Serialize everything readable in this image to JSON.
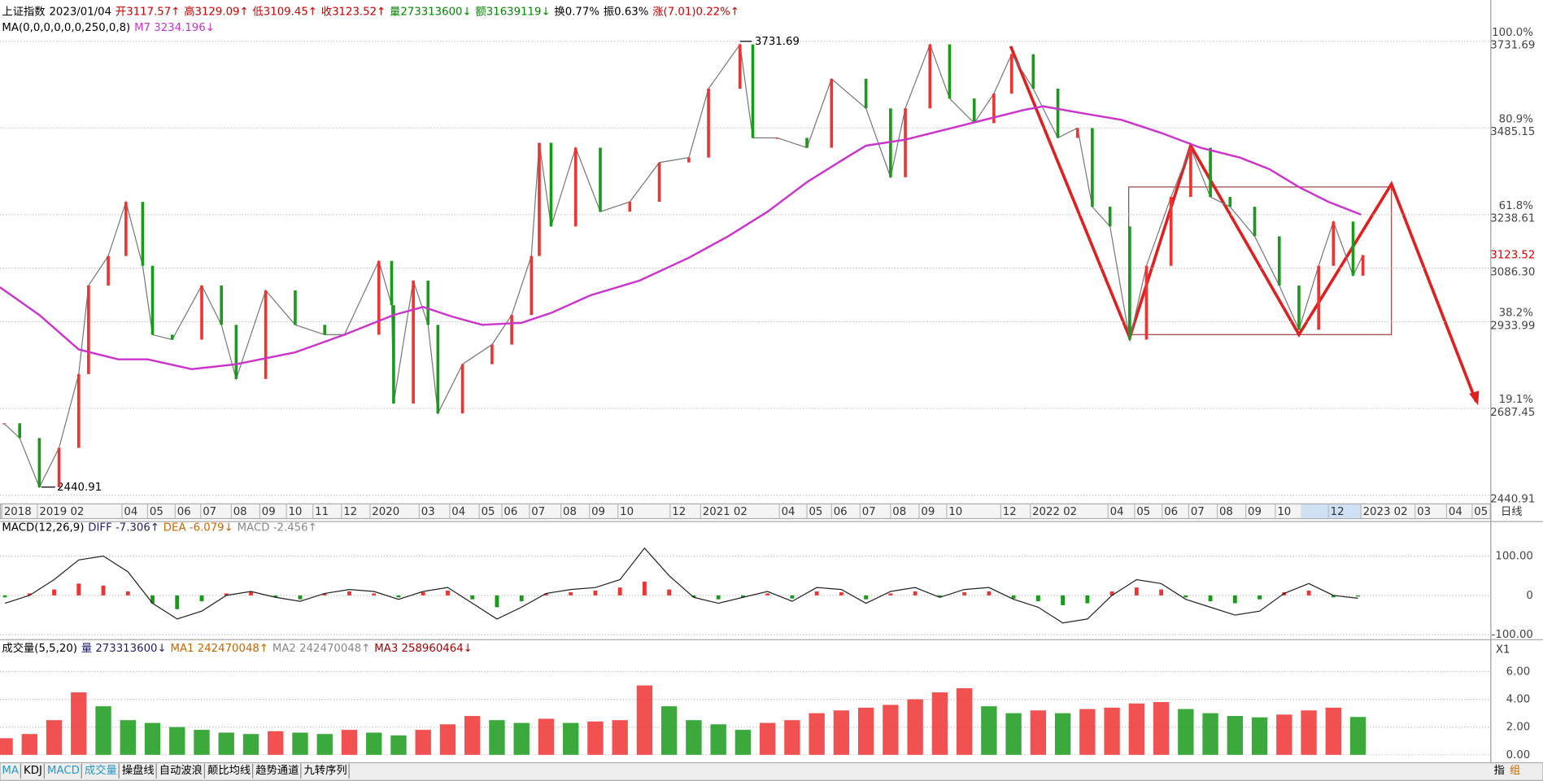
{
  "header": {
    "name": "上证指数",
    "date": "2023/01/04",
    "open": "开3117.57↑",
    "high": "高3129.09↑",
    "low": "低3109.45↑",
    "close": "收3123.52↑",
    "volume": "量273313600↓",
    "amount": "额31639119↓",
    "turnover": "换0.77%",
    "amplitude": "振0.63%",
    "change": "涨(7.01)0.22%↑"
  },
  "ma_header": {
    "params": "MA(0,0,0,0,0,0,250,0,8)",
    "m7": "M7 3234.196↓"
  },
  "price": {
    "ylim": [
      2440.91,
      3731.69
    ],
    "levels": [
      {
        "value": 3731.69,
        "label": "3731.69",
        "pct": "100.0%"
      },
      {
        "value": 3485.15,
        "label": "3485.15",
        "pct": "80.9%"
      },
      {
        "value": 3238.61,
        "label": "3238.61",
        "pct": "61.8%"
      },
      {
        "value": 2933.99,
        "label": "2933.99",
        "pct": "38.2%"
      },
      {
        "value": 2687.45,
        "label": "2687.45",
        "pct": "19.1%"
      },
      {
        "value": 2440.91,
        "label": "2440.91"
      }
    ],
    "extra_ticks": [
      {
        "value": 3086.3,
        "label": "3086.30"
      }
    ],
    "current": {
      "value": 3123.52,
      "label": "3123.52"
    },
    "high_mark": {
      "value": 3731.69,
      "label": "3731.69"
    },
    "low_mark": {
      "value": 2440.91,
      "label": "2440.91"
    },
    "values": [
      2645,
      2603,
      2463,
      2575,
      2785,
      3037,
      3121,
      3275,
      3093,
      2897,
      2883,
      3037,
      2925,
      2771,
      3023,
      2925,
      2897,
      2897,
      3107,
      2981,
      2701,
      3051,
      2925,
      2673,
      2813,
      2869,
      2953,
      3121,
      3443,
      3205,
      3429,
      3247,
      3275,
      3387,
      3401,
      3597,
      3723,
      3457,
      3457,
      3429,
      3625,
      3541,
      3345,
      3541,
      3723,
      3569,
      3499,
      3583,
      3695,
      3597,
      3457,
      3485,
      3261,
      3205,
      2883,
      3093,
      3289,
      3429,
      3289,
      3261,
      3177,
      3037,
      2911,
      3093,
      3219,
      3065,
      3123.52
    ],
    "ma": {
      "color": "#cc33cc",
      "values": [
        3032,
        2953,
        2855,
        2827,
        2827,
        2799,
        2813,
        2847,
        2897,
        2953,
        2976,
        2948,
        2925,
        2931,
        2959,
        3009,
        3051,
        3116,
        3177,
        3247,
        3331,
        3401,
        3435,
        3452,
        3480,
        3508,
        3536,
        3547,
        3527,
        3508,
        3471,
        3429,
        3401,
        3368,
        3317,
        3275,
        3239
      ]
    }
  },
  "dates": {
    "labels": [
      "2018",
      "2019 02",
      "04",
      "05",
      "06",
      "07",
      "08",
      "09",
      "10",
      "11",
      "12",
      "2020",
      "03",
      "04",
      "05",
      "06",
      "07",
      "08",
      "09",
      "10",
      "12",
      "2021 02",
      "04",
      "05",
      "06",
      "07",
      "08",
      "09",
      "10",
      "12",
      "2022 02",
      "04",
      "05",
      "06",
      "07",
      "08",
      "09",
      "10",
      "12",
      "2023 02",
      "03",
      "04",
      "05"
    ],
    "period": "日线"
  },
  "macd": {
    "header": {
      "params": "MACD(12,26,9)",
      "diff": "DIFF -7.306↑",
      "dea": "DEA -6.079↓",
      "macd": "MACD -2.456↑"
    },
    "ylim": [
      -100,
      100
    ],
    "yticks": [
      {
        "value": 100,
        "label": "100.00"
      },
      0,
      {
        "value": -100,
        "label": "-100.00"
      }
    ],
    "hist": [
      -5,
      5,
      15,
      30,
      25,
      10,
      -20,
      -35,
      -15,
      5,
      10,
      -5,
      -10,
      5,
      10,
      5,
      -5,
      8,
      12,
      -10,
      -30,
      -15,
      5,
      8,
      12,
      20,
      35,
      15,
      -5,
      -10,
      -5,
      5,
      -8,
      10,
      8,
      -10,
      5,
      10,
      -5,
      8,
      10,
      -8,
      -15,
      -25,
      -20,
      10,
      20,
      15,
      -5,
      -15,
      -20,
      -10,
      8,
      12,
      -5,
      -3
    ],
    "diff": [
      -20,
      0,
      40,
      90,
      100,
      60,
      -20,
      -60,
      -40,
      0,
      10,
      -5,
      -15,
      5,
      15,
      10,
      -10,
      10,
      20,
      -20,
      -60,
      -30,
      5,
      15,
      20,
      40,
      120,
      50,
      -5,
      -20,
      -5,
      10,
      -15,
      20,
      15,
      -20,
      10,
      20,
      -5,
      15,
      20,
      -10,
      -30,
      -70,
      -60,
      0,
      40,
      30,
      -10,
      -30,
      -50,
      -40,
      5,
      30,
      0,
      -7.306
    ]
  },
  "volume": {
    "header": {
      "params": "成交量(5,5,20)",
      "vol": "量 273313600↓",
      "ma1": "MA1 242470048↑",
      "ma2": "MA2 242470048↑",
      "ma3": "MA3 258960464↓"
    },
    "zoom": "X1",
    "yticks": [
      {
        "value": 6,
        "label": "6.00"
      },
      {
        "value": 4,
        "label": "4.00"
      },
      {
        "value": 2,
        "label": "2.00"
      },
      {
        "value": 0,
        "label": "0.00"
      }
    ],
    "values": [
      1.2,
      1.5,
      2.5,
      4.5,
      3.5,
      2.5,
      2.3,
      2.0,
      1.8,
      1.6,
      1.5,
      1.7,
      1.6,
      1.5,
      1.8,
      1.6,
      1.4,
      1.8,
      2.2,
      2.8,
      2.5,
      2.3,
      2.6,
      2.3,
      2.4,
      2.5,
      5.0,
      3.5,
      2.5,
      2.2,
      1.8,
      2.3,
      2.5,
      3.0,
      3.2,
      3.4,
      3.6,
      4.0,
      4.5,
      4.8,
      3.5,
      3.0,
      3.2,
      3.0,
      3.3,
      3.4,
      3.7,
      3.8,
      3.3,
      3.0,
      2.8,
      2.7,
      2.9,
      3.2,
      3.4,
      2.73
    ]
  },
  "toolbar": {
    "tabs": [
      "MA",
      "KDJ",
      "MACD",
      "成交量",
      "操盘线",
      "自动波浪",
      "颠比均线",
      "趋势通道",
      "九转序列"
    ],
    "right": [
      "指",
      "组"
    ]
  }
}
